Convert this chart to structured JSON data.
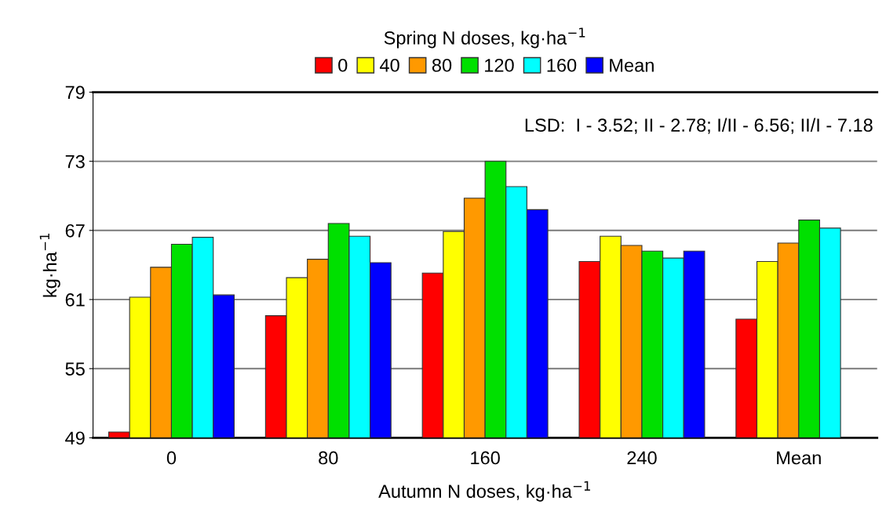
{
  "chart_data": {
    "type": "bar",
    "legend_title": "Spring N doses, kg·ha$^{−1}$",
    "xlabel": "Autumn N doses, kg·ha$^{−1}$",
    "ylabel": "kg·ha$^{−1}$",
    "categories": [
      "0",
      "80",
      "160",
      "240",
      "Mean"
    ],
    "series": [
      {
        "name": "0",
        "color": "#ff0000",
        "values": [
          49.5,
          59.6,
          63.3,
          64.3,
          59.3
        ]
      },
      {
        "name": "40",
        "color": "#ffff00",
        "values": [
          61.2,
          62.9,
          66.9,
          66.5,
          64.3
        ]
      },
      {
        "name": "80",
        "color": "#ff9900",
        "values": [
          63.8,
          64.5,
          69.8,
          65.7,
          65.9
        ]
      },
      {
        "name": "120",
        "color": "#00e000",
        "values": [
          65.8,
          67.6,
          73.0,
          65.2,
          67.9
        ]
      },
      {
        "name": "160",
        "color": "#00ffff",
        "values": [
          66.4,
          66.5,
          70.8,
          64.6,
          67.2
        ]
      },
      {
        "name": "Mean",
        "color": "#0000ff",
        "values": [
          61.4,
          64.2,
          68.8,
          65.2,
          null
        ]
      }
    ],
    "ylim": [
      49,
      79
    ],
    "yticks": [
      49,
      55,
      61,
      67,
      73,
      79
    ],
    "grid": "y",
    "legend": "top",
    "annotations": [
      "LSD:  I - 3.52; II - 2.78; I/II - 6.56; II/I - 7.18"
    ]
  }
}
